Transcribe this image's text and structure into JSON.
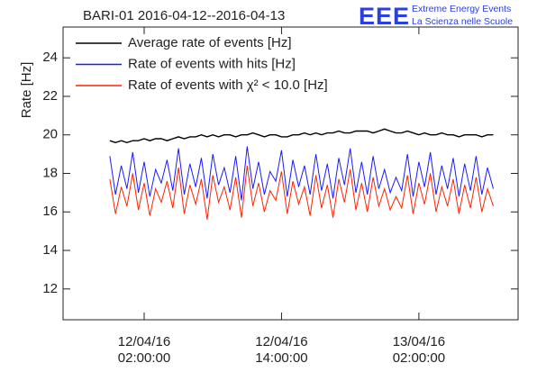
{
  "chart_data": {
    "type": "line",
    "title": "BARI-01 2016-04-12--2016-04-13",
    "logo": {
      "mark": "EEE",
      "line1": "Extreme Energy Events",
      "line2": "La Scienza nelle Scuole"
    },
    "ylabel": "Rate [Hz]",
    "xlim": [
      "2016-04-11T18:55",
      "2016-04-13T10:40"
    ],
    "xticks": [
      {
        "value": "2016-04-12T02:00",
        "label": "12/04/16 02:00:00"
      },
      {
        "value": "2016-04-12T14:00",
        "label": "12/04/16 14:00:00"
      },
      {
        "value": "2016-04-13T02:00",
        "label": "13/04/16 02:00:00"
      }
    ],
    "ylim": [
      10.4,
      25.6
    ],
    "yticks": [
      12,
      14,
      16,
      18,
      20,
      22,
      24
    ],
    "legend": "top-left",
    "x": [
      "2016-04-11T23:00",
      "2016-04-11T23:30",
      "2016-04-12T00:00",
      "2016-04-12T00:30",
      "2016-04-12T01:00",
      "2016-04-12T01:30",
      "2016-04-12T02:00",
      "2016-04-12T02:30",
      "2016-04-12T03:00",
      "2016-04-12T03:30",
      "2016-04-12T04:00",
      "2016-04-12T04:30",
      "2016-04-12T05:00",
      "2016-04-12T05:30",
      "2016-04-12T06:00",
      "2016-04-12T06:30",
      "2016-04-12T07:00",
      "2016-04-12T07:30",
      "2016-04-12T08:00",
      "2016-04-12T08:30",
      "2016-04-12T09:00",
      "2016-04-12T09:30",
      "2016-04-12T10:00",
      "2016-04-12T10:30",
      "2016-04-12T11:00",
      "2016-04-12T11:30",
      "2016-04-12T12:00",
      "2016-04-12T12:30",
      "2016-04-12T13:00",
      "2016-04-12T13:30",
      "2016-04-12T14:00",
      "2016-04-12T14:30",
      "2016-04-12T15:00",
      "2016-04-12T15:30",
      "2016-04-12T16:00",
      "2016-04-12T16:30",
      "2016-04-12T17:00",
      "2016-04-12T17:30",
      "2016-04-12T18:00",
      "2016-04-12T18:30",
      "2016-04-12T19:00",
      "2016-04-12T19:30",
      "2016-04-12T20:00",
      "2016-04-12T20:30",
      "2016-04-12T21:00",
      "2016-04-12T21:30",
      "2016-04-12T22:00",
      "2016-04-12T22:30",
      "2016-04-12T23:00",
      "2016-04-12T23:30",
      "2016-04-13T00:00",
      "2016-04-13T00:30",
      "2016-04-13T01:00",
      "2016-04-13T01:30",
      "2016-04-13T02:00",
      "2016-04-13T02:30",
      "2016-04-13T03:00",
      "2016-04-13T03:30",
      "2016-04-13T04:00",
      "2016-04-13T04:30",
      "2016-04-13T05:00",
      "2016-04-13T05:30",
      "2016-04-13T06:00",
      "2016-04-13T06:30",
      "2016-04-13T07:00",
      "2016-04-13T07:30",
      "2016-04-13T08:00",
      "2016-04-13T08:30"
    ],
    "series": [
      {
        "name": "Average rate of events [Hz]",
        "color": "#000000",
        "values": [
          19.7,
          19.6,
          19.7,
          19.6,
          19.7,
          19.7,
          19.8,
          19.7,
          19.8,
          19.8,
          19.7,
          19.8,
          19.9,
          19.8,
          19.9,
          19.9,
          20.0,
          19.9,
          20.0,
          19.9,
          20.0,
          20.0,
          19.9,
          20.0,
          20.0,
          20.1,
          20.0,
          19.9,
          20.0,
          20.0,
          19.9,
          19.9,
          20.0,
          20.0,
          20.1,
          20.0,
          20.1,
          20.0,
          20.1,
          20.1,
          20.2,
          20.1,
          20.1,
          20.2,
          20.2,
          20.2,
          20.1,
          20.2,
          20.3,
          20.2,
          20.1,
          20.1,
          20.2,
          20.1,
          20.0,
          20.1,
          20.0,
          20.0,
          20.1,
          20.0,
          20.0,
          19.9,
          20.0,
          20.0,
          20.0,
          19.9,
          20.0,
          20.0
        ]
      },
      {
        "name": "Rate of events with hits [Hz]",
        "color": "#1a1aff",
        "values": [
          18.9,
          16.9,
          18.4,
          17.2,
          19.1,
          17.0,
          18.6,
          16.8,
          18.2,
          17.5,
          18.7,
          17.1,
          19.3,
          16.9,
          18.5,
          17.3,
          18.8,
          16.7,
          19.0,
          17.4,
          18.3,
          17.0,
          18.9,
          16.6,
          19.4,
          17.2,
          18.6,
          16.9,
          18.1,
          17.6,
          19.2,
          16.8,
          18.7,
          17.3,
          18.4,
          16.9,
          19.0,
          17.1,
          18.5,
          16.7,
          18.8,
          17.4,
          19.3,
          17.0,
          18.6,
          16.9,
          18.9,
          17.2,
          18.2,
          17.0,
          17.8,
          17.1,
          19.0,
          16.8,
          18.6,
          17.3,
          19.1,
          16.9,
          18.4,
          17.2,
          18.8,
          16.8,
          18.5,
          17.1,
          18.9,
          16.9,
          18.3,
          17.2
        ]
      },
      {
        "name": "Rate of events with χ² < 10.0 [Hz]",
        "color": "#ff2200",
        "values": [
          17.7,
          15.9,
          17.3,
          16.3,
          18.0,
          16.1,
          17.5,
          15.8,
          17.2,
          16.5,
          17.6,
          16.2,
          18.3,
          15.9,
          17.4,
          16.4,
          17.7,
          15.6,
          17.9,
          16.5,
          17.3,
          16.1,
          17.8,
          15.7,
          18.4,
          16.3,
          17.5,
          16.0,
          17.1,
          16.6,
          18.1,
          15.9,
          17.6,
          16.4,
          17.3,
          15.8,
          17.9,
          16.2,
          17.4,
          15.7,
          17.7,
          16.5,
          18.2,
          16.1,
          17.5,
          16.0,
          17.8,
          16.3,
          17.2,
          16.1,
          16.8,
          16.2,
          17.9,
          15.9,
          17.5,
          16.4,
          18.0,
          16.0,
          17.3,
          16.3,
          17.7,
          15.9,
          17.4,
          16.2,
          17.8,
          16.0,
          17.2,
          16.3
        ]
      }
    ]
  }
}
